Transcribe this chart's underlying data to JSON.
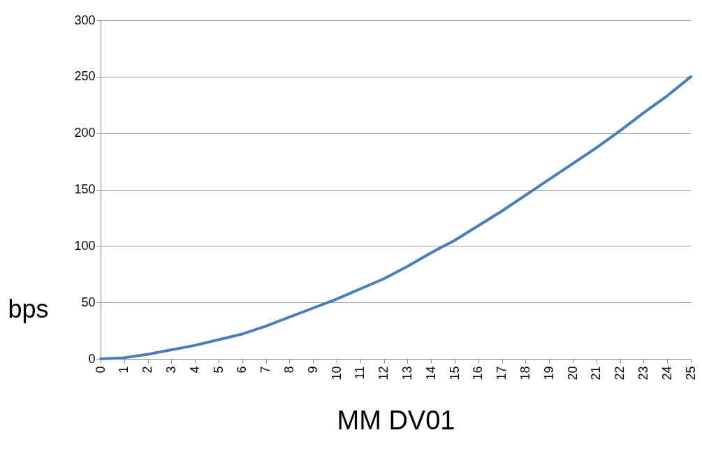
{
  "chart_data": {
    "type": "line",
    "xlabel": "MM DV01",
    "ylabel": "bps",
    "x": [
      0,
      1,
      2,
      3,
      4,
      5,
      6,
      7,
      8,
      9,
      10,
      11,
      12,
      13,
      14,
      15,
      16,
      17,
      18,
      19,
      20,
      21,
      22,
      23,
      24,
      25
    ],
    "series": [
      {
        "color": "#4a7ebb",
        "values": [
          0,
          1,
          4,
          8,
          12,
          17,
          22,
          29,
          37,
          45,
          53,
          62,
          71,
          82,
          94,
          105,
          118,
          131,
          145,
          159,
          173,
          187,
          202,
          218,
          233,
          250
        ]
      }
    ],
    "xlim": [
      0,
      25
    ],
    "xticks": [
      0,
      1,
      2,
      3,
      4,
      5,
      6,
      7,
      8,
      9,
      10,
      11,
      12,
      13,
      14,
      15,
      16,
      17,
      18,
      19,
      20,
      21,
      22,
      23,
      24,
      25
    ],
    "ylim": [
      0,
      300
    ],
    "yticks": [
      0,
      50,
      100,
      150,
      200,
      250,
      300
    ],
    "grid": "y",
    "marker": "none",
    "line_style": "solid"
  }
}
